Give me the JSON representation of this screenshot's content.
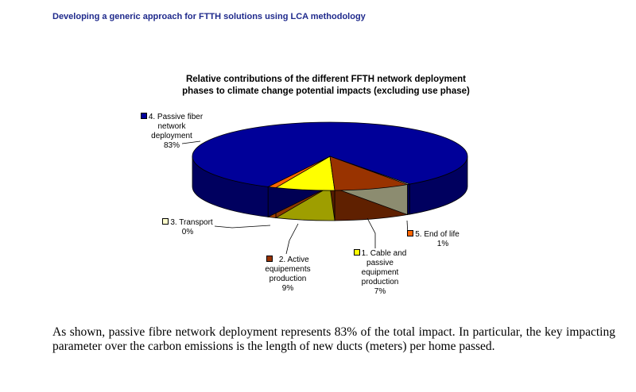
{
  "header": {
    "title": "Developing a generic approach for FTTH solutions using LCA methodology"
  },
  "paragraph": "As shown, passive fibre network deployment represents 83% of the total impact. In particular, the key impacting parameter over the carbon emissions is the length of new ducts (meters) per home passed.",
  "chart_data": {
    "type": "pie",
    "title": [
      "Relative contributions of the different FFTH network deployment",
      "phases to climate change potential impacts (excluding use phase)"
    ],
    "slices": [
      {
        "key": "cable",
        "name": "1. Cable and passive equipment production",
        "lines": [
          "1. Cable and",
          "passive",
          "equipment",
          "production"
        ],
        "value_label": "7%",
        "value": 7,
        "color": "#ffff00"
      },
      {
        "key": "active",
        "name": "2. Active equipements production",
        "lines": [
          "2. Active",
          "equipements",
          "production"
        ],
        "value_label": "9%",
        "value": 9,
        "color": "#993300"
      },
      {
        "key": "transport",
        "name": "3. Transport",
        "lines": [
          "3. Transport"
        ],
        "value_label": "0%",
        "value": 0.3,
        "color": "#ffffcc"
      },
      {
        "key": "passive",
        "name": "4. Passive fiber network deployment",
        "lines": [
          "4. Passive fiber",
          "network",
          "deployment"
        ],
        "value_label": "83%",
        "value": 83,
        "color": "#000099"
      },
      {
        "key": "eol",
        "name": "5. End of life",
        "lines": [
          "5. End of life"
        ],
        "value_label": "1%",
        "value": 1,
        "color": "#ff6600"
      }
    ]
  }
}
